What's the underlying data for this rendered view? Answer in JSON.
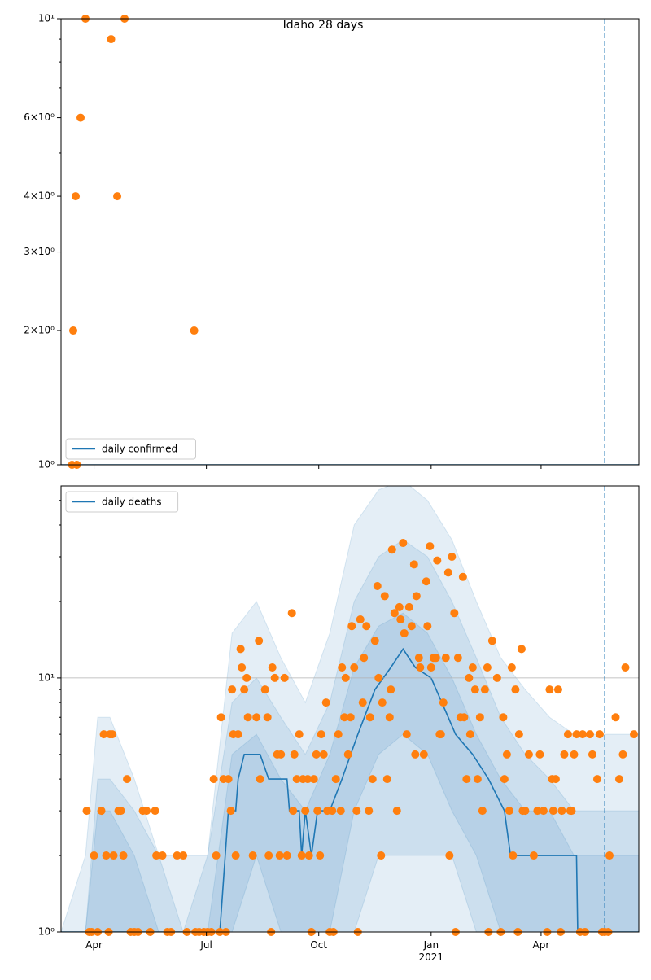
{
  "chart_data": [
    {
      "type": "line",
      "title": "Idaho 28 days",
      "log_y": true,
      "xlim": [
        0,
        473
      ],
      "xticks": [
        27,
        119,
        211,
        303,
        393
      ],
      "ylim": [
        1,
        10
      ],
      "yticks": [
        {
          "value": 1,
          "label": "10⁰"
        },
        {
          "value": 2,
          "label": "2×10⁰"
        },
        {
          "value": 3,
          "label": "3×10⁰"
        },
        {
          "value": 4,
          "label": "4×10⁰"
        },
        {
          "value": 6,
          "label": "6×10⁰"
        },
        {
          "value": 10,
          "label": "10¹"
        }
      ],
      "minor_yticks": [
        5,
        7,
        8,
        9
      ],
      "vline": 445,
      "legend": "lower left",
      "series": [
        {
          "name": "daily confirmed",
          "color": "#1f77b4",
          "x": [
            0,
            473
          ],
          "values": [
            1,
            1
          ]
        }
      ],
      "points": {
        "color": "#ff7f0e",
        "x": [
          9,
          13,
          10,
          12,
          16,
          20,
          41,
          46,
          52,
          109
        ],
        "values": [
          1,
          1,
          2,
          4,
          6,
          10,
          9,
          4,
          10,
          2
        ]
      }
    },
    {
      "type": "line",
      "log_y": true,
      "grid": true,
      "xlim": [
        0,
        473
      ],
      "xticks": [
        {
          "value": 27,
          "label": "Apr"
        },
        {
          "value": 119,
          "label": "Jul"
        },
        {
          "value": 211,
          "label": "Oct"
        },
        {
          "value": 303,
          "label": "Jan\n2021"
        },
        {
          "value": 393,
          "label": "Apr"
        }
      ],
      "ylim": [
        1,
        57
      ],
      "yticks": [
        {
          "value": 1,
          "label": "10⁰"
        },
        {
          "value": 10,
          "label": "10¹"
        }
      ],
      "minor_yticks": [
        2,
        3,
        4,
        5,
        6,
        7,
        8,
        9,
        20,
        30,
        40,
        50
      ],
      "vline": 445,
      "legend": "upper left",
      "band_color": "#1f77b4",
      "band_x": [
        0,
        20,
        30,
        40,
        60,
        80,
        100,
        120,
        140,
        160,
        180,
        200,
        220,
        240,
        260,
        280,
        300,
        320,
        340,
        360,
        380,
        400,
        420,
        440,
        460,
        473
      ],
      "bands": [
        {
          "lower": [
            1,
            1,
            1,
            1,
            1,
            1,
            1,
            1,
            1,
            1,
            1,
            1,
            1,
            1,
            1,
            1,
            1,
            1,
            1,
            1,
            1,
            1,
            1,
            1,
            1,
            1
          ],
          "upper": [
            1,
            2,
            7,
            7,
            4,
            2,
            2,
            2,
            15,
            20,
            12,
            8,
            15,
            40,
            55,
            60,
            50,
            35,
            20,
            12,
            9,
            7,
            6,
            6,
            6,
            6
          ]
        },
        {
          "lower": [
            1,
            1,
            1,
            1,
            1,
            1,
            1,
            1,
            1,
            1,
            1,
            1,
            1,
            1,
            2,
            2,
            2,
            2,
            1,
            1,
            1,
            1,
            1,
            1,
            1,
            1
          ],
          "upper": [
            1,
            1,
            4,
            4,
            3,
            2,
            1,
            2,
            8,
            10,
            7,
            5,
            8,
            20,
            30,
            35,
            30,
            20,
            12,
            7,
            5,
            4,
            3,
            3,
            3,
            3
          ]
        },
        {
          "lower": [
            1,
            1,
            1,
            1,
            1,
            1,
            1,
            1,
            1,
            2,
            1,
            1,
            1,
            3,
            5,
            6,
            5,
            3,
            2,
            1,
            1,
            1,
            1,
            1,
            1,
            1
          ],
          "upper": [
            1,
            1,
            3,
            3,
            2,
            1,
            1,
            1,
            5,
            6,
            4,
            3,
            5,
            11,
            16,
            18,
            15,
            10,
            6,
            4,
            3,
            3,
            2,
            2,
            2,
            2
          ]
        }
      ],
      "series": [
        {
          "name": "daily deaths",
          "color": "#1f77b4",
          "x": [
            0,
            130,
            137,
            143,
            145,
            150,
            163,
            170,
            185,
            187,
            195,
            197,
            200,
            205,
            210,
            220,
            230,
            243,
            257,
            270,
            280,
            290,
            303,
            317,
            323,
            337,
            350,
            363,
            368,
            422,
            423,
            473
          ],
          "values": [
            1,
            1,
            3,
            3,
            4,
            5,
            5,
            4,
            4,
            3,
            3,
            2,
            3,
            2,
            3,
            3,
            4,
            6,
            9,
            11,
            13,
            11,
            10,
            7,
            6,
            5,
            4,
            3,
            2,
            2,
            1,
            1
          ]
        }
      ],
      "points": {
        "color": "#ff7f0e",
        "x": [
          21,
          23,
          25,
          27,
          30,
          33,
          35,
          37,
          39,
          40,
          42,
          43,
          47,
          49,
          51,
          54,
          57,
          60,
          63,
          67,
          70,
          73,
          77,
          78,
          83,
          87,
          90,
          95,
          100,
          103,
          110,
          113,
          117,
          120,
          123,
          125,
          127,
          130,
          131,
          133,
          135,
          137,
          139,
          140,
          141,
          143,
          145,
          147,
          148,
          150,
          152,
          153,
          157,
          160,
          162,
          163,
          167,
          169,
          170,
          172,
          173,
          175,
          177,
          179,
          180,
          183,
          185,
          189,
          190,
          191,
          193,
          195,
          197,
          198,
          200,
          202,
          203,
          205,
          207,
          209,
          210,
          212,
          213,
          215,
          217,
          218,
          220,
          222,
          223,
          225,
          227,
          229,
          230,
          232,
          233,
          235,
          237,
          238,
          240,
          242,
          243,
          245,
          247,
          248,
          250,
          252,
          253,
          255,
          257,
          259,
          260,
          262,
          263,
          265,
          267,
          269,
          270,
          271,
          273,
          275,
          277,
          278,
          280,
          281,
          283,
          285,
          287,
          289,
          290,
          291,
          293,
          294,
          297,
          299,
          300,
          302,
          303,
          305,
          307,
          308,
          310,
          311,
          313,
          315,
          317,
          318,
          320,
          322,
          323,
          325,
          327,
          329,
          330,
          332,
          334,
          335,
          337,
          339,
          341,
          343,
          345,
          347,
          349,
          350,
          353,
          357,
          360,
          362,
          363,
          365,
          367,
          369,
          370,
          372,
          374,
          375,
          377,
          378,
          380,
          383,
          387,
          390,
          392,
          395,
          398,
          400,
          402,
          403,
          405,
          407,
          409,
          410,
          412,
          415,
          417,
          418,
          420,
          422,
          425,
          427,
          429,
          433,
          435,
          439,
          441,
          443,
          445,
          448,
          449,
          454,
          457,
          460,
          462,
          469
        ],
        "values": [
          3,
          1,
          1,
          2,
          1,
          3,
          6,
          2,
          1,
          6,
          6,
          2,
          3,
          3,
          2,
          4,
          1,
          1,
          1,
          3,
          3,
          1,
          3,
          2,
          2,
          1,
          1,
          2,
          2,
          1,
          1,
          1,
          1,
          1,
          1,
          4,
          2,
          1,
          7,
          4,
          1,
          4,
          3,
          9,
          6,
          2,
          6,
          13,
          11,
          9,
          10,
          7,
          2,
          7,
          14,
          4,
          9,
          7,
          2,
          1,
          11,
          10,
          5,
          2,
          5,
          10,
          2,
          18,
          3,
          5,
          4,
          6,
          2,
          4,
          3,
          4,
          2,
          1,
          4,
          5,
          3,
          2,
          6,
          5,
          8,
          3,
          1,
          3,
          1,
          4,
          6,
          3,
          11,
          7,
          10,
          5,
          7,
          16,
          11,
          3,
          1,
          17,
          8,
          12,
          16,
          3,
          7,
          4,
          14,
          23,
          10,
          2,
          8,
          21,
          4,
          7,
          9,
          32,
          18,
          3,
          19,
          17,
          34,
          15,
          6,
          19,
          16,
          28,
          5,
          21,
          12,
          11,
          5,
          24,
          16,
          33,
          11,
          12,
          12,
          29,
          6,
          6,
          8,
          12,
          26,
          2,
          30,
          18,
          1,
          12,
          7,
          25,
          7,
          4,
          10,
          6,
          11,
          9,
          4,
          7,
          3,
          9,
          11,
          1,
          14,
          10,
          1,
          7,
          4,
          5,
          3,
          11,
          2,
          9,
          1,
          6,
          13,
          3,
          3,
          5,
          2,
          3,
          5,
          3,
          1,
          9,
          4,
          3,
          4,
          9,
          1,
          3,
          5,
          6,
          3,
          3,
          5,
          6,
          1,
          6,
          1,
          6,
          5,
          4,
          6,
          1,
          1,
          1,
          2,
          7,
          4,
          5,
          11,
          6
        ]
      }
    }
  ]
}
